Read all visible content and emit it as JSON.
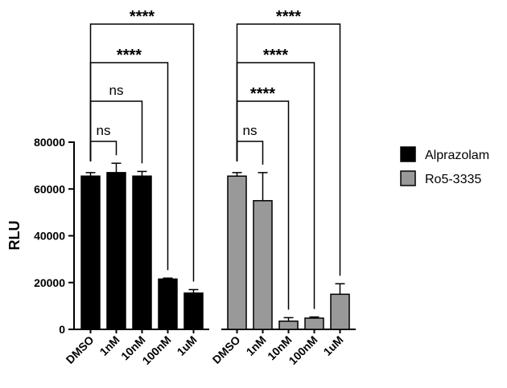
{
  "chart_data": {
    "type": "bar",
    "title": "",
    "xlabel": "",
    "ylabel": "RLU",
    "ylim": [
      0,
      80000
    ],
    "yticks": [
      "0",
      "20000",
      "40000",
      "60000",
      "80000"
    ],
    "categories": [
      "DMSO",
      "1nM",
      "10nM",
      "100nM",
      "1uM"
    ],
    "legend_position": "right",
    "series": [
      {
        "name": "Alprazolam",
        "color": "#000000",
        "values": [
          65500,
          67000,
          65500,
          21500,
          15500
        ],
        "errors": [
          1500,
          4000,
          2000,
          400,
          1500
        ]
      },
      {
        "name": "Ro5-3335",
        "color": "#999999",
        "values": [
          65500,
          55000,
          3500,
          4800,
          15000
        ],
        "errors": [
          1500,
          12000,
          1500,
          500,
          4500
        ]
      }
    ],
    "comparisons": [
      {
        "series": 0,
        "from": 0,
        "to": 1,
        "label": "ns"
      },
      {
        "series": 0,
        "from": 0,
        "to": 2,
        "label": "ns"
      },
      {
        "series": 0,
        "from": 0,
        "to": 3,
        "label": "****"
      },
      {
        "series": 0,
        "from": 0,
        "to": 4,
        "label": "****"
      },
      {
        "series": 1,
        "from": 0,
        "to": 1,
        "label": "ns"
      },
      {
        "series": 1,
        "from": 0,
        "to": 2,
        "label": "****"
      },
      {
        "series": 1,
        "from": 0,
        "to": 3,
        "label": "****"
      },
      {
        "series": 1,
        "from": 0,
        "to": 4,
        "label": "****"
      }
    ]
  }
}
